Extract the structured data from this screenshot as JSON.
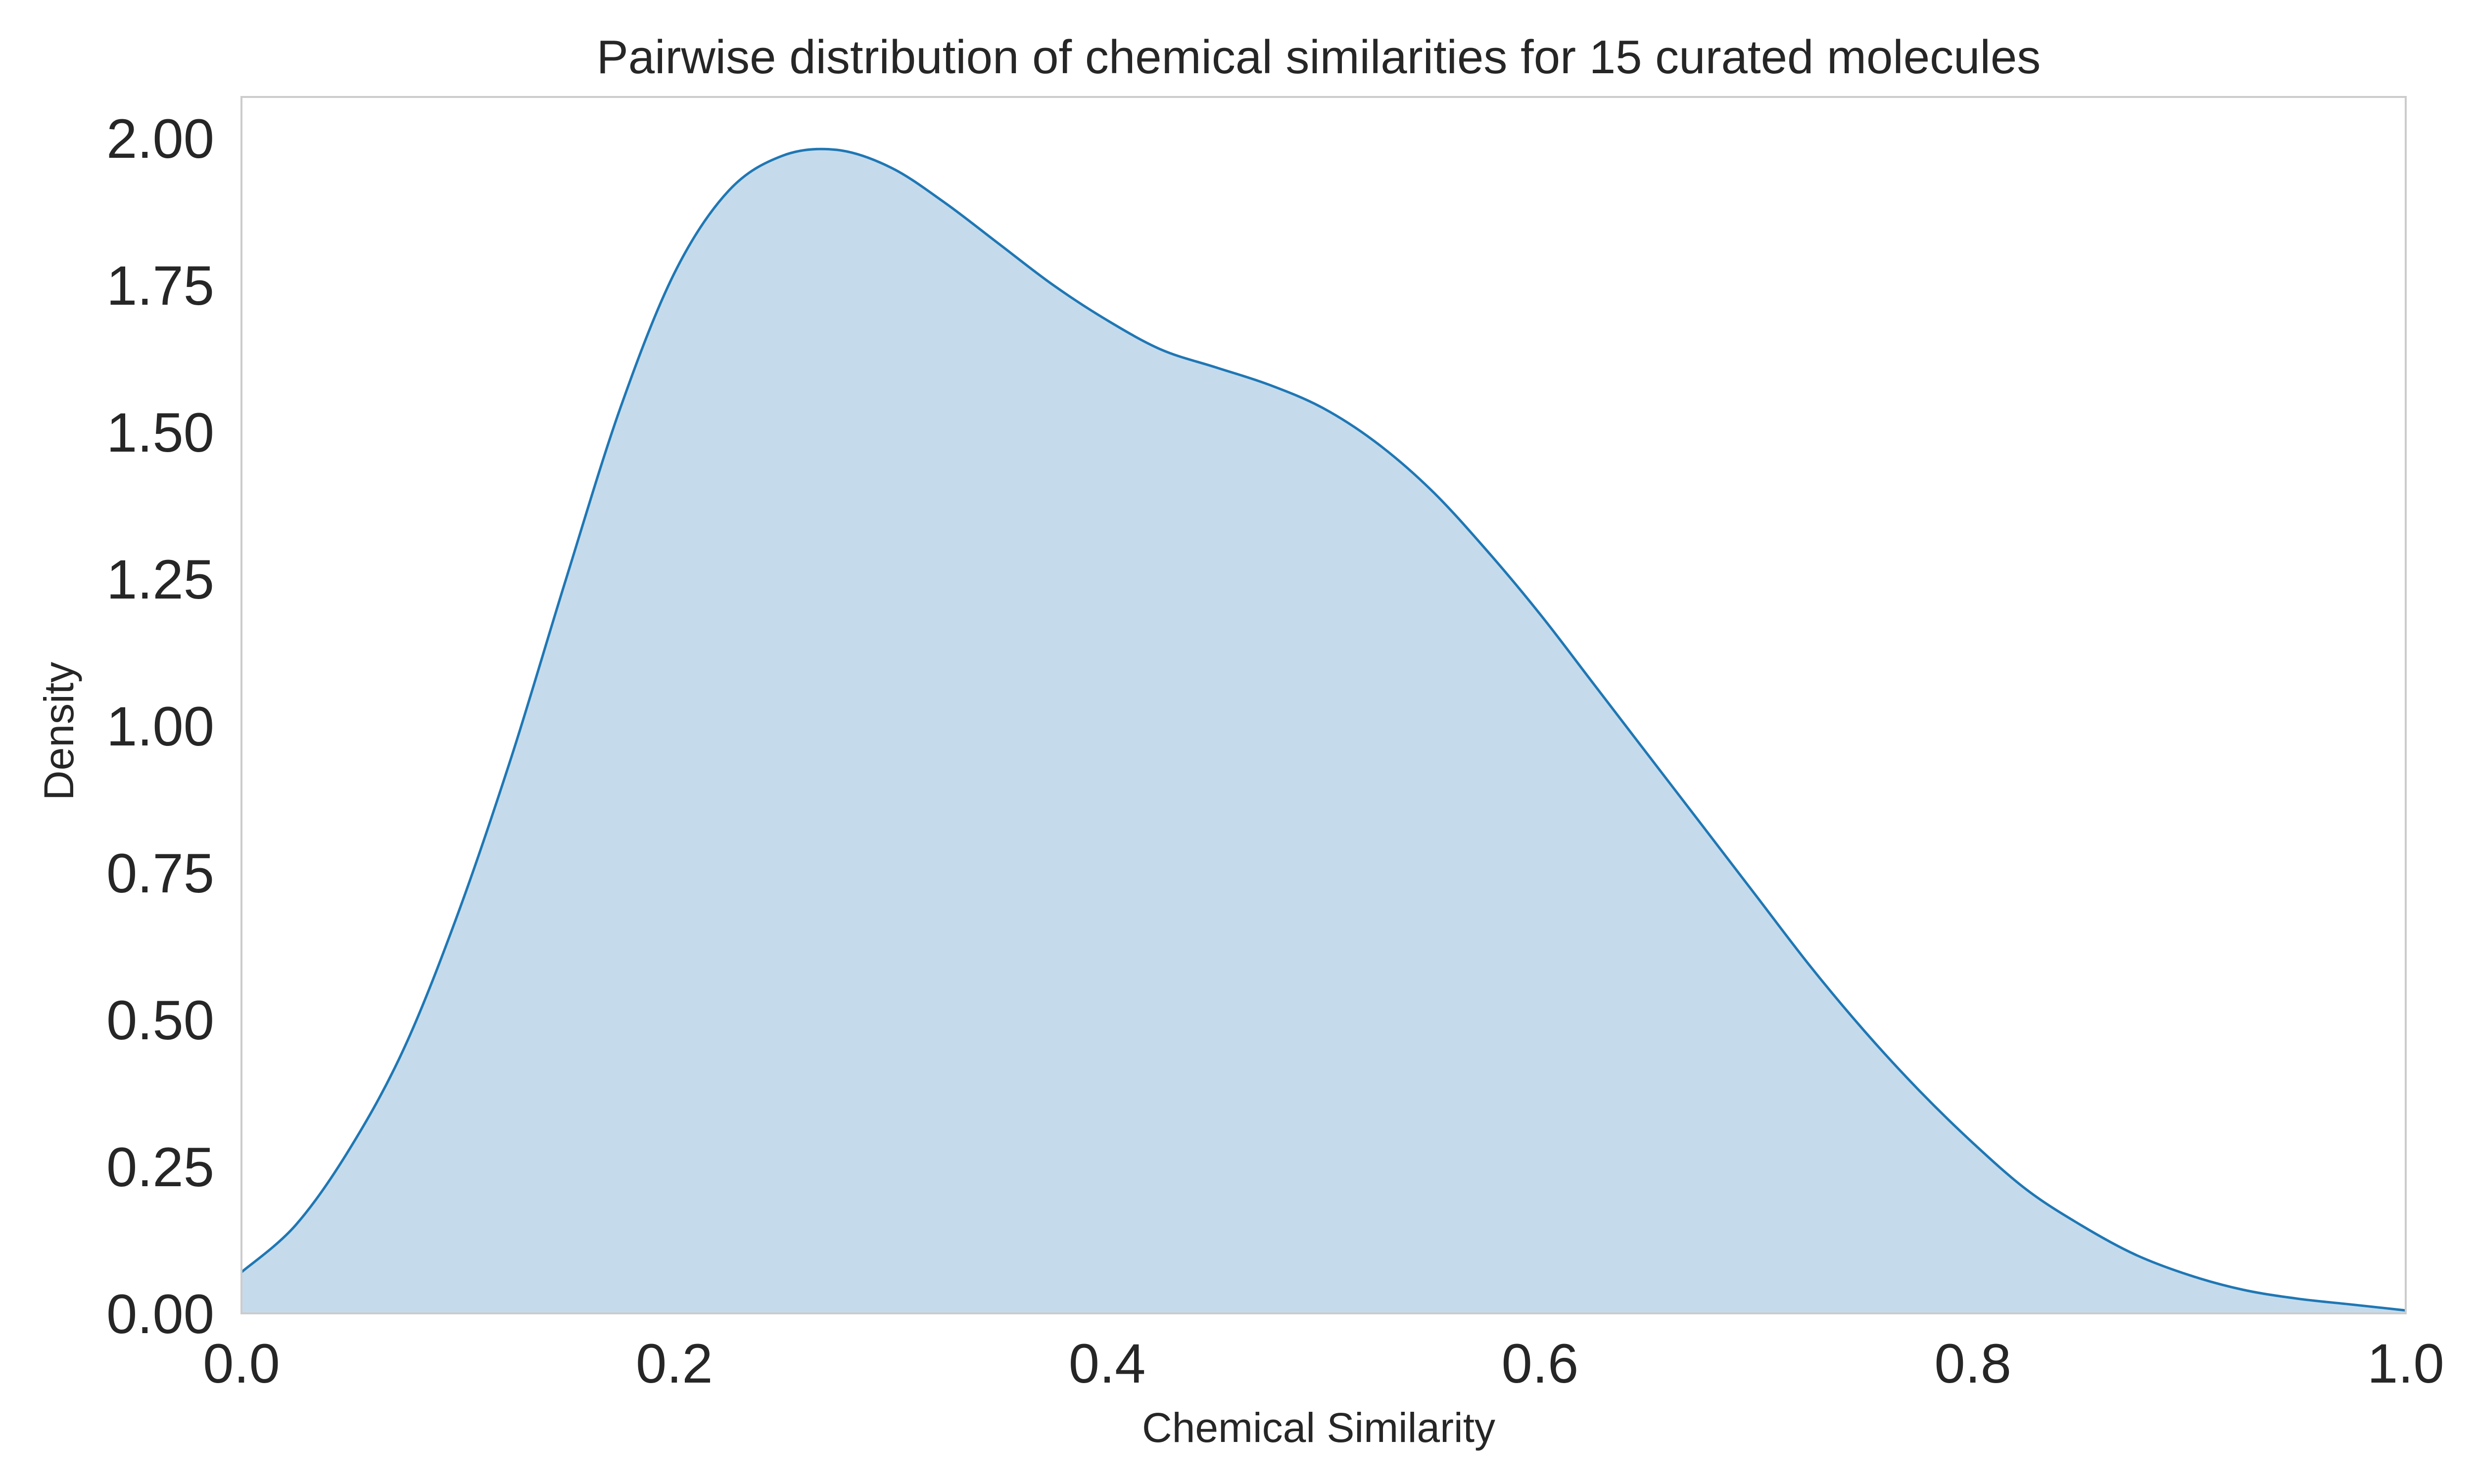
{
  "chart_data": {
    "type": "area",
    "title": "Pairwise distribution of chemical similarities for 15 curated molecules",
    "xlabel": "Chemical Similarity",
    "ylabel": "Density",
    "xlim": [
      0.0,
      1.0
    ],
    "ylim": [
      0.0,
      2.07
    ],
    "x_ticks": [
      0.0,
      0.2,
      0.4,
      0.6,
      0.8,
      1.0
    ],
    "x_tick_labels": [
      "0.0",
      "0.2",
      "0.4",
      "0.6",
      "0.8",
      "1.0"
    ],
    "y_ticks": [
      0.0,
      0.25,
      0.5,
      0.75,
      1.0,
      1.25,
      1.5,
      1.75,
      2.0
    ],
    "y_tick_labels": [
      "0.00",
      "0.25",
      "0.50",
      "0.75",
      "1.00",
      "1.25",
      "1.50",
      "1.75",
      "2.00"
    ],
    "grid": false,
    "legend": "none",
    "colors": {
      "line": "#1f77b4",
      "fill": "#c5dbec",
      "frame": "#cccccc",
      "text": "#262626"
    },
    "series": [
      {
        "x": [
          0.0,
          0.025,
          0.05,
          0.075,
          0.1,
          0.125,
          0.15,
          0.175,
          0.2,
          0.225,
          0.25,
          0.275,
          0.3,
          0.325,
          0.35,
          0.375,
          0.4,
          0.425,
          0.45,
          0.475,
          0.5,
          0.525,
          0.55,
          0.575,
          0.6,
          0.625,
          0.65,
          0.675,
          0.7,
          0.725,
          0.75,
          0.775,
          0.8,
          0.825,
          0.85,
          0.875,
          0.9,
          0.925,
          0.95,
          0.975,
          1.0
        ],
        "y": [
          0.07,
          0.15,
          0.28,
          0.45,
          0.68,
          0.95,
          1.25,
          1.54,
          1.77,
          1.91,
          1.97,
          1.98,
          1.95,
          1.89,
          1.82,
          1.75,
          1.69,
          1.64,
          1.61,
          1.58,
          1.54,
          1.48,
          1.4,
          1.3,
          1.19,
          1.07,
          0.95,
          0.83,
          0.71,
          0.59,
          0.48,
          0.38,
          0.29,
          0.21,
          0.15,
          0.1,
          0.065,
          0.04,
          0.025,
          0.015,
          0.005
        ]
      }
    ]
  }
}
